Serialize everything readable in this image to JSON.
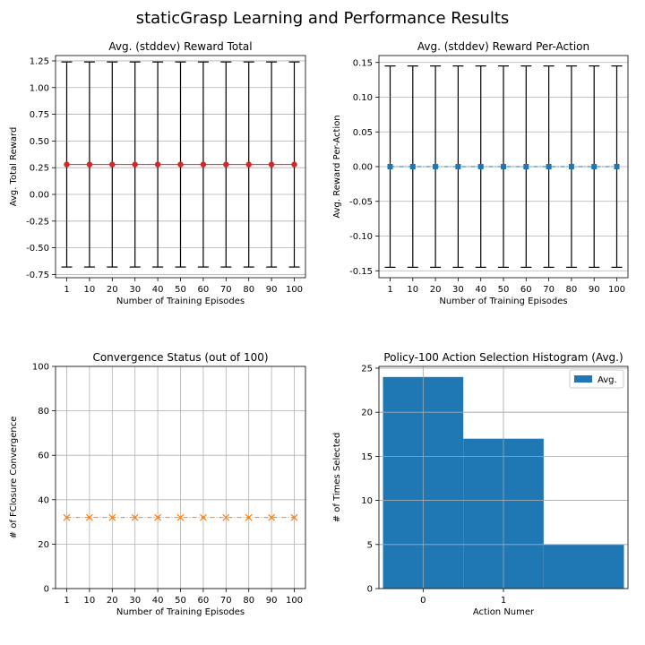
{
  "figure": {
    "title": "staticGrasp Learning and Performance Results"
  },
  "chart_data": [
    {
      "type": "line",
      "title": "Avg. (stddev) Reward Total",
      "xlabel": "Number of Training Episodes",
      "ylabel": "Avg. Total Reward",
      "categories": [
        "1",
        "10",
        "20",
        "30",
        "40",
        "50",
        "60",
        "70",
        "80",
        "90",
        "100"
      ],
      "ylim": [
        -0.78,
        1.3
      ],
      "yticks": [
        -0.75,
        -0.5,
        -0.25,
        0.0,
        0.25,
        0.5,
        0.75,
        1.0,
        1.25
      ],
      "ytick_labels": [
        "-0.75",
        "-0.50",
        "-0.25",
        "0.00",
        "0.25",
        "0.50",
        "0.75",
        "1.00",
        "1.25"
      ],
      "grid": "y",
      "marker": "circle",
      "color": "#d62728",
      "series": [
        {
          "values": [
            0.28,
            0.28,
            0.28,
            0.28,
            0.28,
            0.28,
            0.28,
            0.28,
            0.28,
            0.28,
            0.28
          ],
          "err_low": [
            -0.68,
            -0.68,
            -0.68,
            -0.68,
            -0.68,
            -0.68,
            -0.68,
            -0.68,
            -0.68,
            -0.68,
            -0.68
          ],
          "err_high": [
            1.24,
            1.24,
            1.24,
            1.24,
            1.24,
            1.24,
            1.24,
            1.24,
            1.24,
            1.24,
            1.24
          ]
        }
      ]
    },
    {
      "type": "line",
      "title": "Avg. (stddev) Reward Per-Action",
      "xlabel": "Number of Training Episodes",
      "ylabel": "Avg. Reward Per-Action",
      "categories": [
        "1",
        "10",
        "20",
        "30",
        "40",
        "50",
        "60",
        "70",
        "80",
        "90",
        "100"
      ],
      "ylim": [
        -0.16,
        0.16
      ],
      "yticks": [
        -0.15,
        -0.1,
        -0.05,
        0.0,
        0.05,
        0.1,
        0.15
      ],
      "ytick_labels": [
        "-0.15",
        "-0.10",
        "-0.05",
        "0.00",
        "0.05",
        "0.10",
        "0.15"
      ],
      "grid": "y",
      "marker": "square",
      "color": "#1f77b4",
      "series": [
        {
          "values": [
            0,
            0,
            0,
            0,
            0,
            0,
            0,
            0,
            0,
            0,
            0
          ],
          "err_low": [
            -0.145,
            -0.145,
            -0.145,
            -0.145,
            -0.145,
            -0.145,
            -0.145,
            -0.145,
            -0.145,
            -0.145,
            -0.145
          ],
          "err_high": [
            0.145,
            0.145,
            0.145,
            0.145,
            0.145,
            0.145,
            0.145,
            0.145,
            0.145,
            0.145,
            0.145
          ]
        }
      ]
    },
    {
      "type": "line",
      "title": "Convergence Status (out of 100)",
      "xlabel": "Number of Training Episodes",
      "ylabel": "# of FClosure Convergence",
      "categories": [
        "1",
        "10",
        "20",
        "30",
        "40",
        "50",
        "60",
        "70",
        "80",
        "90",
        "100"
      ],
      "ylim": [
        0,
        100
      ],
      "yticks": [
        0,
        20,
        40,
        60,
        80,
        100
      ],
      "ytick_labels": [
        "0",
        "20",
        "40",
        "60",
        "80",
        "100"
      ],
      "grid": "both",
      "marker": "x",
      "color": "#ff7f0e",
      "series": [
        {
          "values": [
            32,
            32,
            32,
            32,
            32,
            32,
            32,
            32,
            32,
            32,
            32
          ]
        }
      ]
    },
    {
      "type": "bar",
      "title": "Policy-100 Action Selection Histogram (Avg.)",
      "xlabel": "Action Numer",
      "ylabel": "# of Times Selected",
      "xticks": [
        0,
        1
      ],
      "xtick_labels": [
        "0",
        "1"
      ],
      "xlim": [
        -0.55,
        2.55
      ],
      "ylim": [
        0,
        25.2
      ],
      "yticks": [
        0,
        5,
        10,
        15,
        20,
        25
      ],
      "ytick_labels": [
        "0",
        "5",
        "10",
        "15",
        "20",
        "25"
      ],
      "grid": "both",
      "legend": {
        "position": "top-right",
        "label": "Avg."
      },
      "color": "#1f77b4",
      "bins": [
        {
          "from": -0.5,
          "to": 0.5,
          "value": 24
        },
        {
          "from": 0.5,
          "to": 1.5,
          "value": 17
        },
        {
          "from": 1.5,
          "to": 2.5,
          "value": 5
        }
      ]
    }
  ]
}
